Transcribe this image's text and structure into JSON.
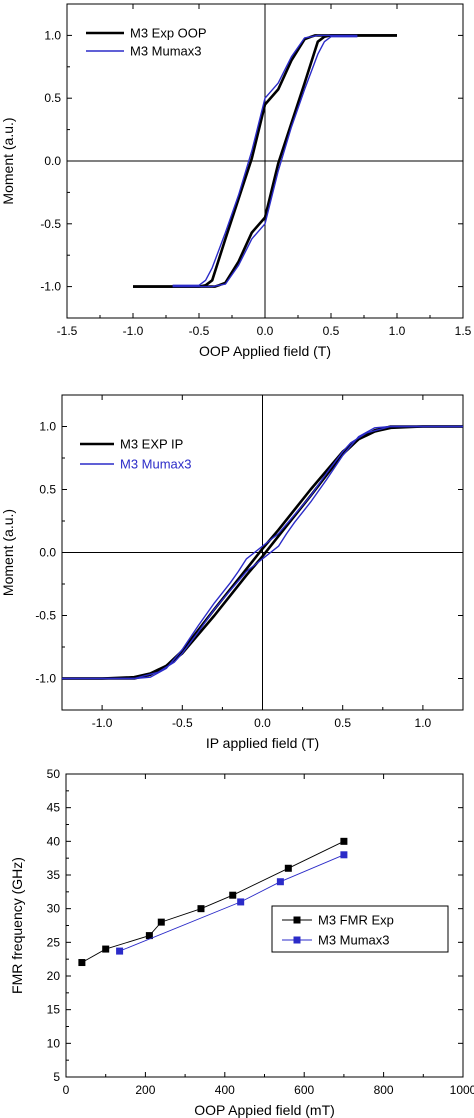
{
  "chart_data": [
    {
      "type": "line",
      "xlabel": "OOP Applied field (T)",
      "ylabel": "Moment (a.u.)",
      "xlim": [
        -1.5,
        1.5
      ],
      "ylim": [
        -1.25,
        1.25
      ],
      "xticks": [
        "-1.5",
        "-1.0",
        "-0.5",
        "0.0",
        "0.5",
        "1.0",
        "1.5"
      ],
      "yticks": [
        "-1.0",
        "-0.5",
        "0.0",
        "0.5",
        "1.0"
      ],
      "legend_position": "top-left",
      "grid": false,
      "series": [
        {
          "name": "M3 Exp OOP",
          "color": "#000000",
          "branches": [
            {
              "x": [
                1.0,
                0.6,
                0.5,
                0.45,
                0.4,
                0.3,
                0.2,
                0.1,
                0.0,
                -0.1,
                -0.2,
                -0.3,
                -0.35,
                -0.38,
                -0.4,
                -0.6,
                -1.0
              ],
              "y": [
                1.0,
                1.0,
                1.0,
                0.99,
                0.95,
                0.62,
                0.3,
                -0.02,
                -0.45,
                -0.57,
                -0.8,
                -0.97,
                -0.99,
                -1.0,
                -1.0,
                -1.0,
                -1.0
              ]
            },
            {
              "x": [
                -1.0,
                -0.6,
                -0.5,
                -0.45,
                -0.4,
                -0.3,
                -0.2,
                -0.1,
                0.0,
                0.1,
                0.2,
                0.3,
                0.35,
                0.38,
                0.4,
                0.6,
                1.0
              ],
              "y": [
                -1.0,
                -1.0,
                -1.0,
                -0.99,
                -0.95,
                -0.62,
                -0.3,
                0.02,
                0.45,
                0.57,
                0.8,
                0.97,
                0.99,
                1.0,
                1.0,
                1.0,
                1.0
              ]
            }
          ]
        },
        {
          "name": "M3 Mumax3",
          "color": "#2b2bc8",
          "branches": [
            {
              "x": [
                0.7,
                0.5,
                0.45,
                0.4,
                0.3,
                0.2,
                0.1,
                0.0,
                -0.1,
                -0.2,
                -0.3,
                -0.4,
                -0.43,
                -0.45,
                -0.7
              ],
              "y": [
                0.99,
                0.99,
                0.95,
                0.85,
                0.57,
                0.27,
                -0.08,
                -0.5,
                -0.62,
                -0.83,
                -0.98,
                -1.0,
                -1.0,
                -1.0,
                -1.0
              ]
            },
            {
              "x": [
                -0.7,
                -0.5,
                -0.45,
                -0.4,
                -0.3,
                -0.2,
                -0.1,
                0.0,
                0.1,
                0.2,
                0.3,
                0.4,
                0.43,
                0.45,
                0.7
              ],
              "y": [
                -0.99,
                -0.99,
                -0.95,
                -0.85,
                -0.57,
                -0.27,
                0.08,
                0.5,
                0.62,
                0.83,
                0.98,
                1.0,
                1.0,
                1.0,
                1.0
              ]
            }
          ]
        }
      ]
    },
    {
      "type": "line",
      "xlabel": "IP applied field (T)",
      "ylabel": "Moment (a.u.)",
      "xlim": [
        -1.25,
        1.25
      ],
      "ylim": [
        -1.25,
        1.25
      ],
      "xticks": [
        "-1.0",
        "-0.5",
        "0.0",
        "0.5",
        "1.0"
      ],
      "yticks": [
        "-1.0",
        "-0.5",
        "0.0",
        "0.5",
        "1.0"
      ],
      "legend_position": "top-left",
      "grid": false,
      "series": [
        {
          "name": "M3 EXP IP",
          "color": "#000000",
          "branches": [
            {
              "x": [
                -1.25,
                -1.0,
                -0.8,
                -0.7,
                -0.65,
                -0.6,
                -0.55,
                -0.5,
                -0.3,
                -0.1,
                0.0,
                0.1,
                0.3,
                0.5,
                0.55,
                0.6,
                0.7,
                0.8,
                1.0,
                1.25
              ],
              "y": [
                -1.0,
                -1.0,
                -0.99,
                -0.96,
                -0.93,
                -0.9,
                -0.85,
                -0.8,
                -0.5,
                -0.18,
                -0.03,
                0.13,
                0.45,
                0.78,
                0.84,
                0.9,
                0.97,
                1.0,
                1.0,
                1.0
              ]
            },
            {
              "x": [
                1.25,
                1.0,
                0.8,
                0.7,
                0.65,
                0.6,
                0.55,
                0.5,
                0.3,
                0.1,
                0.0,
                -0.1,
                -0.3,
                -0.5,
                -0.55,
                -0.6,
                -0.7,
                -0.8,
                -1.0,
                -1.25
              ],
              "y": [
                1.0,
                1.0,
                0.99,
                0.96,
                0.93,
                0.9,
                0.85,
                0.8,
                0.5,
                0.18,
                0.03,
                -0.13,
                -0.45,
                -0.78,
                -0.84,
                -0.9,
                -0.97,
                -1.0,
                -1.0,
                -1.0
              ]
            }
          ]
        },
        {
          "name": "M3 Mumax3",
          "color": "#2b2bc8",
          "branches": [
            {
              "x": [
                -1.25,
                -0.8,
                -0.65,
                -0.55,
                -0.5,
                -0.4,
                -0.3,
                -0.2,
                -0.1,
                0.0,
                0.1,
                0.15,
                0.2,
                0.3,
                0.4,
                0.5,
                0.6,
                0.7,
                0.8,
                1.25
              ],
              "y": [
                -1.0,
                -1.0,
                -0.95,
                -0.87,
                -0.8,
                -0.63,
                -0.45,
                -0.3,
                -0.15,
                -0.05,
                0.05,
                0.15,
                0.24,
                0.4,
                0.58,
                0.77,
                0.92,
                0.99,
                1.0,
                1.0
              ]
            },
            {
              "x": [
                1.25,
                0.8,
                0.65,
                0.55,
                0.5,
                0.4,
                0.3,
                0.2,
                0.1,
                0.0,
                -0.1,
                -0.15,
                -0.2,
                -0.3,
                -0.4,
                -0.5,
                -0.6,
                -0.7,
                -0.8,
                -1.25
              ],
              "y": [
                1.0,
                1.0,
                0.95,
                0.87,
                0.8,
                0.63,
                0.45,
                0.3,
                0.15,
                0.05,
                -0.05,
                -0.15,
                -0.24,
                -0.4,
                -0.58,
                -0.77,
                -0.92,
                -0.99,
                -1.0,
                -1.0
              ]
            }
          ]
        }
      ]
    },
    {
      "type": "line",
      "xlabel": "OOP Appied field (mT)",
      "ylabel": "FMR frequency (GHz)",
      "xlim": [
        0,
        1000
      ],
      "ylim": [
        5,
        50
      ],
      "xticks": [
        "0",
        "200",
        "400",
        "600",
        "800",
        "1000"
      ],
      "yticks": [
        "5",
        "10",
        "15",
        "20",
        "25",
        "30",
        "35",
        "40",
        "45",
        "50"
      ],
      "legend_position": "center-right",
      "grid": false,
      "series": [
        {
          "name": "M3 FMR Exp",
          "color": "#000000",
          "marker": "square",
          "x": [
            40,
            100,
            210,
            240,
            340,
            420,
            560,
            700
          ],
          "y": [
            22,
            24,
            26,
            28,
            30,
            32,
            36,
            40
          ]
        },
        {
          "name": "M3 Mumax3",
          "color": "#2b2bc8",
          "marker": "square",
          "x": [
            135,
            440,
            540,
            700
          ],
          "y": [
            23.7,
            31,
            34,
            38
          ]
        }
      ]
    }
  ]
}
